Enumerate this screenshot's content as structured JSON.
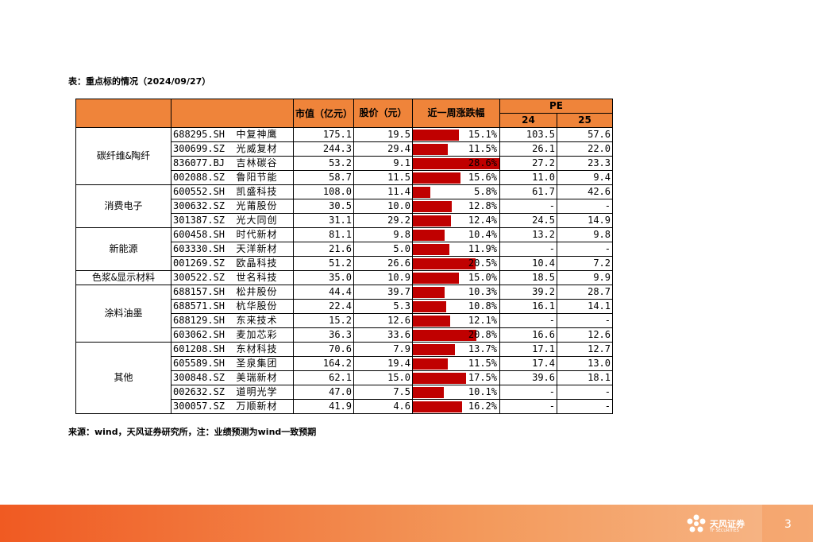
{
  "title": "表：重点标的情况（2024/09/27）",
  "source": "来源：wind，天风证券研究所，注：业绩预测为wind一致预期",
  "headers": {
    "mktcap": "市值（亿元）",
    "price": "股价（元）",
    "weekchg": "近一周涨跌幅",
    "pe": "PE",
    "pe24": "24",
    "pe25": "25"
  },
  "groups": [
    {
      "name": "碳纤维&陶纤",
      "rows": [
        {
          "code": "688295.SH",
          "name": "中复神鹰",
          "mktcap": "175.1",
          "price": "19.5",
          "chg": "15.1%",
          "chg_value": 15.1,
          "pe24": "103.5",
          "pe25": "57.6"
        },
        {
          "code": "300699.SZ",
          "name": "光威复材",
          "mktcap": "244.3",
          "price": "29.4",
          "chg": "11.5%",
          "chg_value": 11.5,
          "pe24": "26.1",
          "pe25": "22.0"
        },
        {
          "code": "836077.BJ",
          "name": "吉林碳谷",
          "mktcap": "53.2",
          "price": "9.1",
          "chg": "28.6%",
          "chg_value": 28.6,
          "pe24": "27.2",
          "pe25": "23.3"
        },
        {
          "code": "002088.SZ",
          "name": "鲁阳节能",
          "mktcap": "58.7",
          "price": "11.5",
          "chg": "15.6%",
          "chg_value": 15.6,
          "pe24": "11.0",
          "pe25": "9.4"
        }
      ]
    },
    {
      "name": "消费电子",
      "rows": [
        {
          "code": "600552.SH",
          "name": "凯盛科技",
          "mktcap": "108.0",
          "price": "11.4",
          "chg": "5.8%",
          "chg_value": 5.8,
          "pe24": "61.7",
          "pe25": "42.6"
        },
        {
          "code": "300632.SZ",
          "name": "光莆股份",
          "mktcap": "30.5",
          "price": "10.0",
          "chg": "12.8%",
          "chg_value": 12.8,
          "pe24": "-",
          "pe25": "-"
        },
        {
          "code": "301387.SZ",
          "name": "光大同创",
          "mktcap": "31.1",
          "price": "29.2",
          "chg": "12.4%",
          "chg_value": 12.4,
          "pe24": "24.5",
          "pe25": "14.9"
        }
      ]
    },
    {
      "name": "新能源",
      "rows": [
        {
          "code": "600458.SH",
          "name": "时代新材",
          "mktcap": "81.1",
          "price": "9.8",
          "chg": "10.4%",
          "chg_value": 10.4,
          "pe24": "13.2",
          "pe25": "9.8"
        },
        {
          "code": "603330.SH",
          "name": "天洋新材",
          "mktcap": "21.6",
          "price": "5.0",
          "chg": "11.9%",
          "chg_value": 11.9,
          "pe24": "-",
          "pe25": "-"
        },
        {
          "code": "001269.SZ",
          "name": "欧晶科技",
          "mktcap": "51.2",
          "price": "26.6",
          "chg": "20.5%",
          "chg_value": 20.5,
          "pe24": "10.4",
          "pe25": "7.2"
        }
      ]
    },
    {
      "name": "色浆&显示材料",
      "rows": [
        {
          "code": "300522.SZ",
          "name": "世名科技",
          "mktcap": "35.0",
          "price": "10.9",
          "chg": "15.0%",
          "chg_value": 15.0,
          "pe24": "18.5",
          "pe25": "9.9"
        }
      ]
    },
    {
      "name": "涂料油墨",
      "rows": [
        {
          "code": "688157.SH",
          "name": "松井股份",
          "mktcap": "44.4",
          "price": "39.7",
          "chg": "10.3%",
          "chg_value": 10.3,
          "pe24": "39.2",
          "pe25": "28.7"
        },
        {
          "code": "688571.SH",
          "name": "杭华股份",
          "mktcap": "22.4",
          "price": "5.3",
          "chg": "10.8%",
          "chg_value": 10.8,
          "pe24": "16.1",
          "pe25": "14.1"
        },
        {
          "code": "688129.SH",
          "name": "东来技术",
          "mktcap": "15.2",
          "price": "12.6",
          "chg": "12.1%",
          "chg_value": 12.1,
          "pe24": "-",
          "pe25": "-"
        },
        {
          "code": "603062.SH",
          "name": "麦加芯彩",
          "mktcap": "36.3",
          "price": "33.6",
          "chg": "20.8%",
          "chg_value": 20.8,
          "pe24": "16.6",
          "pe25": "12.6"
        }
      ]
    },
    {
      "name": "其他",
      "rows": [
        {
          "code": "601208.SH",
          "name": "东材科技",
          "mktcap": "70.6",
          "price": "7.9",
          "chg": "13.7%",
          "chg_value": 13.7,
          "pe24": "17.1",
          "pe25": "12.7"
        },
        {
          "code": "605589.SH",
          "name": "圣泉集团",
          "mktcap": "164.2",
          "price": "19.4",
          "chg": "11.5%",
          "chg_value": 11.5,
          "pe24": "17.4",
          "pe25": "13.0"
        },
        {
          "code": "300848.SZ",
          "name": "美瑞新材",
          "mktcap": "62.1",
          "price": "15.0",
          "chg": "17.5%",
          "chg_value": 17.5,
          "pe24": "39.6",
          "pe25": "18.1"
        },
        {
          "code": "002632.SZ",
          "name": "道明光学",
          "mktcap": "47.0",
          "price": "7.5",
          "chg": "10.1%",
          "chg_value": 10.1,
          "pe24": "-",
          "pe25": "-"
        },
        {
          "code": "300057.SZ",
          "name": "万顺新材",
          "mktcap": "41.9",
          "price": "4.6",
          "chg": "16.2%",
          "chg_value": 16.2,
          "pe24": "-",
          "pe25": "-"
        }
      ]
    }
  ],
  "bar_color": "#c00000",
  "header_color": "#ef843a",
  "footer": {
    "brand": "天风证券",
    "brand_sub": "TF SECURITIES",
    "page": "3"
  }
}
